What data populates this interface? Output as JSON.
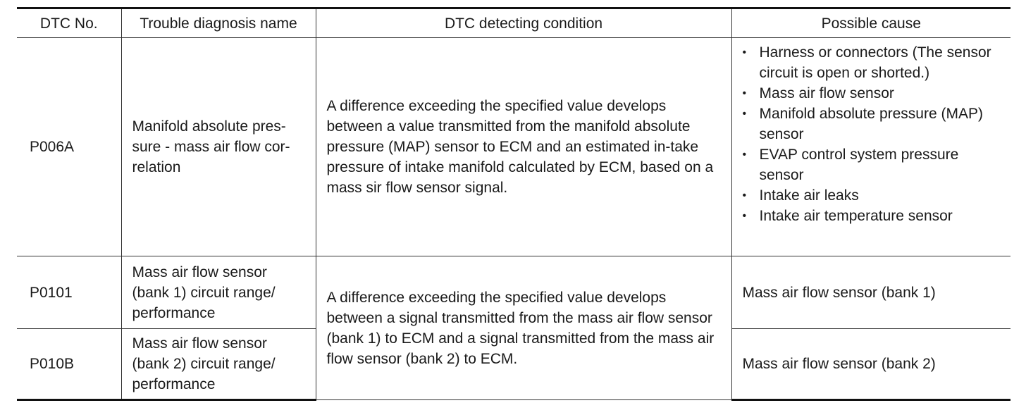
{
  "table": {
    "headers": [
      "DTC No.",
      "Trouble diagnosis name",
      "DTC detecting condition",
      "Possible cause"
    ],
    "rows": [
      {
        "dtc": "P006A",
        "name": "Manifold absolute pres-sure - mass air flow cor-relation",
        "condition": "A difference exceeding the specified value develops between a value transmitted from the manifold absolute pressure (MAP) sensor to ECM and an estimated in-take pressure of intake manifold calculated by ECM, based on a mass sir flow sensor signal.",
        "causes": [
          "Harness or connectors (The sensor circuit is open or shorted.)",
          "Mass air flow sensor",
          "Manifold absolute pressure (MAP) sensor",
          "EVAP control system pressure sensor",
          "Intake air leaks",
          "Intake air temperature sensor"
        ]
      },
      {
        "dtc": "P0101",
        "name": "Mass air flow sensor (bank 1) circuit range/ performance",
        "cause": "Mass air flow sensor (bank 1)"
      },
      {
        "dtc": "P010B",
        "name": "Mass air flow sensor (bank 2) circuit range/ performance",
        "cause": "Mass air flow sensor (bank 2)"
      }
    ],
    "shared_condition": "A difference exceeding the specified value develops between a signal transmitted from the mass air flow sensor (bank 1) to ECM and a signal transmitted from the mass air flow sensor (bank 2) to ECM."
  }
}
